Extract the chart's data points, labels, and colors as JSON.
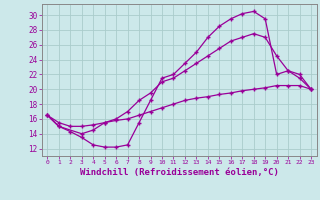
{
  "background_color": "#cce8ea",
  "line_color": "#990099",
  "grid_color": "#aacccc",
  "xlabel": "Windchill (Refroidissement éolien,°C)",
  "xlabel_fontsize": 6.5,
  "xtick_labels": [
    "0",
    "1",
    "2",
    "3",
    "4",
    "5",
    "6",
    "7",
    "8",
    "9",
    "10",
    "11",
    "12",
    "13",
    "14",
    "15",
    "16",
    "17",
    "18",
    "19",
    "20",
    "21",
    "22",
    "23"
  ],
  "ytick_vals": [
    12,
    14,
    16,
    18,
    20,
    22,
    24,
    26,
    28,
    30
  ],
  "ylim": [
    11.0,
    31.5
  ],
  "xlim": [
    -0.5,
    23.5
  ],
  "line1_x": [
    0,
    1,
    2,
    3,
    4,
    5,
    6,
    7,
    8,
    9,
    10,
    11,
    12,
    13,
    14,
    15,
    16,
    17,
    18,
    19,
    20,
    21,
    22,
    23
  ],
  "line1_y": [
    16.5,
    15.0,
    14.3,
    13.5,
    12.5,
    12.2,
    12.2,
    12.5,
    15.5,
    18.5,
    21.5,
    22.0,
    23.5,
    25.0,
    27.0,
    28.5,
    29.5,
    30.2,
    30.5,
    29.5,
    22.0,
    22.5,
    22.0,
    20.0
  ],
  "line2_x": [
    0,
    1,
    3,
    4,
    5,
    6,
    7,
    8,
    9,
    10,
    11,
    12,
    13,
    14,
    15,
    16,
    17,
    18,
    19,
    20,
    21,
    22,
    23
  ],
  "line2_y": [
    16.5,
    15.0,
    14.0,
    14.5,
    15.5,
    16.0,
    17.0,
    18.5,
    19.5,
    21.0,
    21.5,
    22.5,
    23.5,
    24.5,
    25.5,
    26.5,
    27.0,
    27.5,
    27.0,
    24.5,
    22.5,
    21.5,
    20.0
  ],
  "line3_x": [
    0,
    1,
    2,
    3,
    4,
    5,
    6,
    7,
    8,
    9,
    10,
    11,
    12,
    13,
    14,
    15,
    16,
    17,
    18,
    19,
    20,
    21,
    22,
    23
  ],
  "line3_y": [
    16.5,
    15.5,
    15.0,
    15.0,
    15.2,
    15.5,
    15.8,
    16.0,
    16.5,
    17.0,
    17.5,
    18.0,
    18.5,
    18.8,
    19.0,
    19.3,
    19.5,
    19.8,
    20.0,
    20.2,
    20.5,
    20.5,
    20.5,
    20.0
  ]
}
